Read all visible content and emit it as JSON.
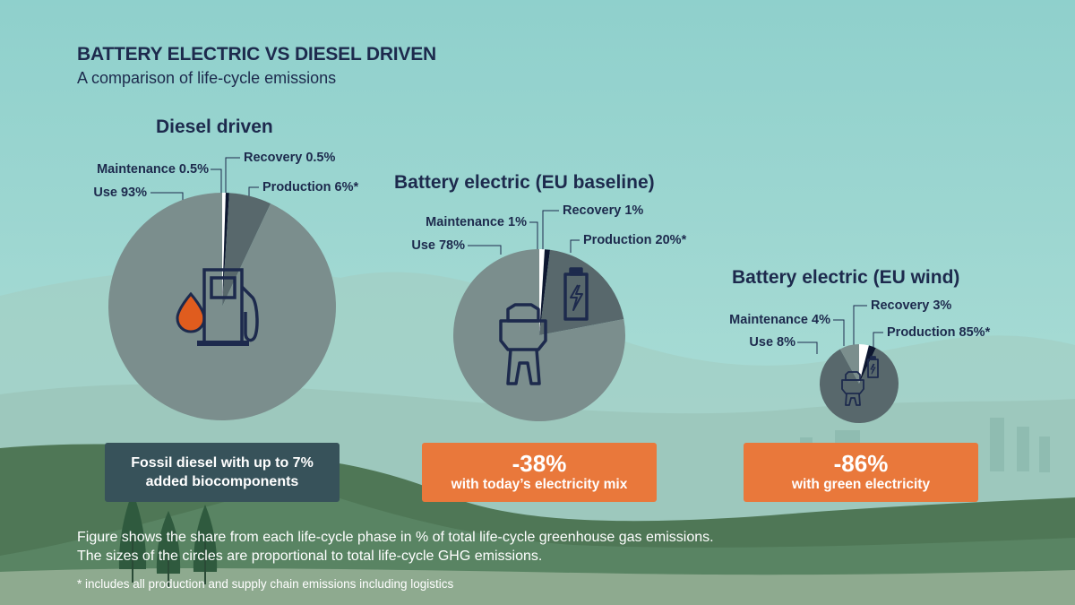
{
  "header": {
    "title": "BATTERY ELECTRIC VS DIESEL DRIVEN",
    "subtitle": "A comparison of life-cycle emissions"
  },
  "colors": {
    "use": "#7b8e8d",
    "production": "#58686c",
    "maintenance": "#ffffff",
    "recovery": "#0e1730",
    "navy": "#1d2a4d",
    "orange": "#e9783b",
    "dark_box": "#37525a"
  },
  "chart_data": [
    {
      "type": "pie",
      "title": "Diesel driven",
      "slices": [
        {
          "label": "Maintenance 0.5%",
          "value": 0.5,
          "color": "#ffffff"
        },
        {
          "label": "Recovery 0.5%",
          "value": 0.5,
          "color": "#0e1730"
        },
        {
          "label": "Production 6%*",
          "value": 6,
          "color": "#58686c"
        },
        {
          "label": "Use 93%",
          "value": 93,
          "color": "#7b8e8d"
        }
      ],
      "icon": "fuel-pump-icon",
      "box": {
        "value": "",
        "text": "Fossil diesel with up to 7% added biocomponents",
        "color": "#37525a"
      }
    },
    {
      "type": "pie",
      "title": "Battery electric (EU baseline)",
      "slices": [
        {
          "label": "Maintenance 1%",
          "value": 1,
          "color": "#ffffff"
        },
        {
          "label": "Recovery 1%",
          "value": 1,
          "color": "#0e1730"
        },
        {
          "label": "Production 20%*",
          "value": 20,
          "color": "#58686c"
        },
        {
          "label": "Use 78%",
          "value": 78,
          "color": "#7b8e8d"
        }
      ],
      "icon": "electric-truck-icon",
      "box": {
        "value": "-38%",
        "text": "with today’s electricity mix",
        "color": "#e9783b"
      }
    },
    {
      "type": "pie",
      "title": "Battery electric (EU wind)",
      "slices": [
        {
          "label": "Maintenance 4%",
          "value": 4,
          "color": "#ffffff"
        },
        {
          "label": "Recovery 3%",
          "value": 3,
          "color": "#0e1730"
        },
        {
          "label": "Production 85%*",
          "value": 85,
          "color": "#58686c"
        },
        {
          "label": "Use 8%",
          "value": 8,
          "color": "#7b8e8d"
        }
      ],
      "icon": "electric-truck-icon",
      "box": {
        "value": "-86%",
        "text": "with green electricity",
        "color": "#e9783b"
      }
    }
  ],
  "footnotes": {
    "line1": "Figure shows the share from each life-cycle phase in % of total life-cycle greenhouse gas emissions.",
    "line2": "The sizes of the circles are proportional to total life-cycle GHG emissions.",
    "star": "* includes all production and supply chain emissions including logistics"
  }
}
